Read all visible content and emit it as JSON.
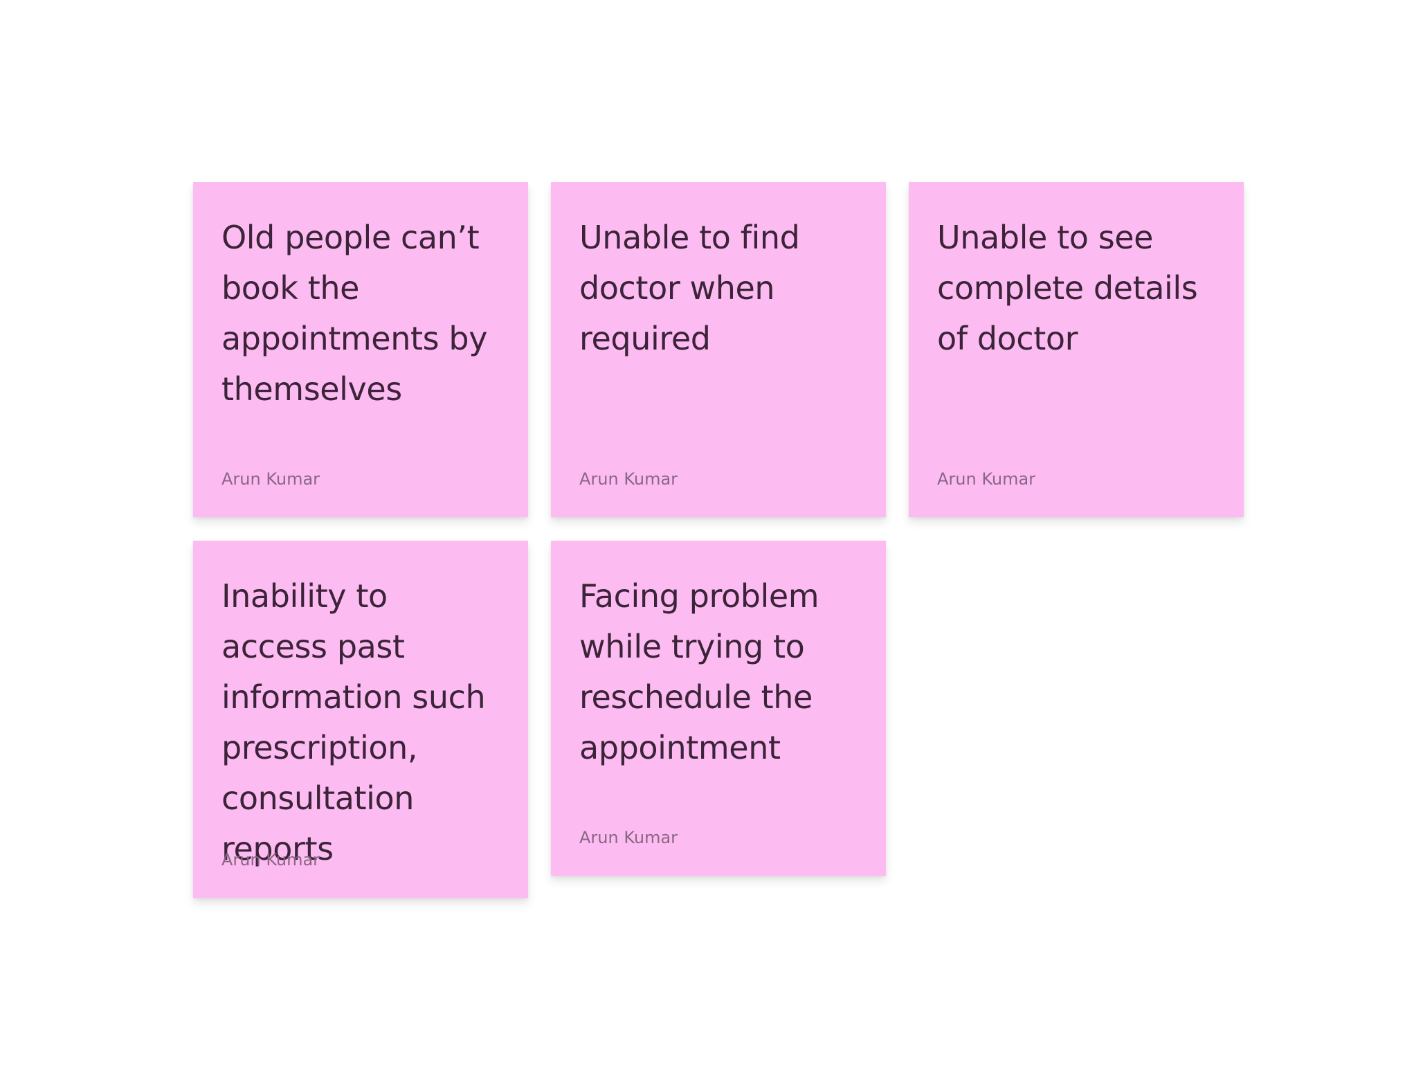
{
  "theme": {
    "sticky_color": "#fdbcf1",
    "text_color": "#3b2339",
    "author_color": "#8a6684"
  },
  "notes": [
    {
      "text": "Old people can’t book the appointments by themselves",
      "author": "Arun Kumar"
    },
    {
      "text": "Unable to find doctor when required",
      "author": "Arun Kumar"
    },
    {
      "text": "Unable to see complete details of doctor",
      "author": "Arun Kumar"
    },
    {
      "text": "Inability to access past information such prescription, consultation reports",
      "author": "Arun Kumar"
    },
    {
      "text": "Facing problem while trying to reschedule the appointment",
      "author": "Arun Kumar"
    }
  ]
}
